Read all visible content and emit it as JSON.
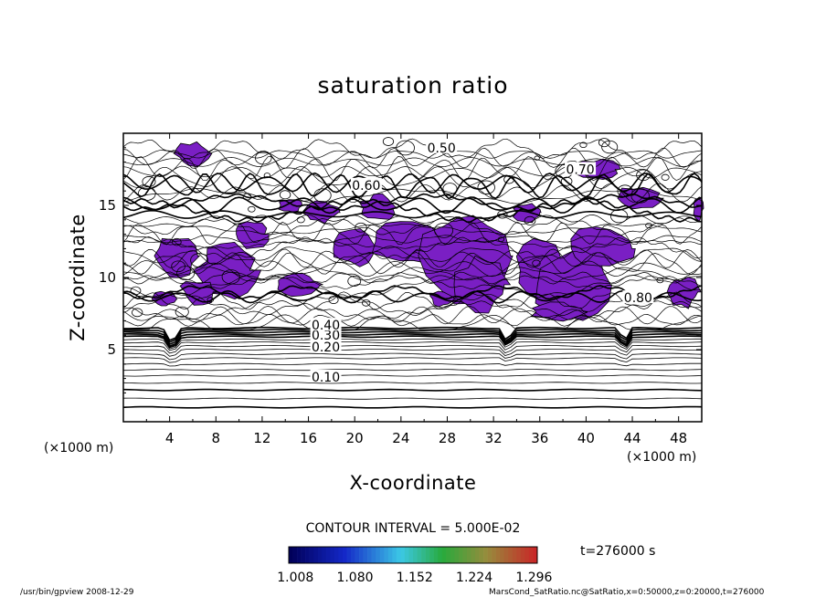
{
  "chart_data": {
    "type": "contour",
    "title": "saturation ratio",
    "xlabel": "X-coordinate",
    "ylabel": "Z-coordinate",
    "x_unit": "(×1000 m)",
    "y_unit": "(×1000 m)",
    "xlim": [
      0,
      50
    ],
    "ylim": [
      0,
      20
    ],
    "x_ticks": [
      "4",
      "8",
      "12",
      "16",
      "20",
      "24",
      "28",
      "32",
      "36",
      "40",
      "44",
      "48"
    ],
    "y_ticks": [
      "5",
      "10",
      "15"
    ],
    "contour_interval_text": "CONTOUR INTERVAL = 5.000E-02",
    "contour_labels": [
      "0.10",
      "0.20",
      "0.30",
      "0.40",
      "0.50",
      "0.60",
      "0.70",
      "0.80"
    ],
    "saturation_fill_color": "#7a1fc4",
    "colorbar": {
      "tick_labels": [
        "1.008",
        "1.080",
        "1.152",
        "1.224",
        "1.296"
      ],
      "range": [
        1.0,
        1.3
      ]
    },
    "time_label": "t=276000 s"
  },
  "footer": {
    "left": "/usr/bin/gpview   2008-12-29",
    "right": "MarsCond_SatRatio.nc@SatRatio,x=0:50000,z=0:20000,t=276000"
  }
}
